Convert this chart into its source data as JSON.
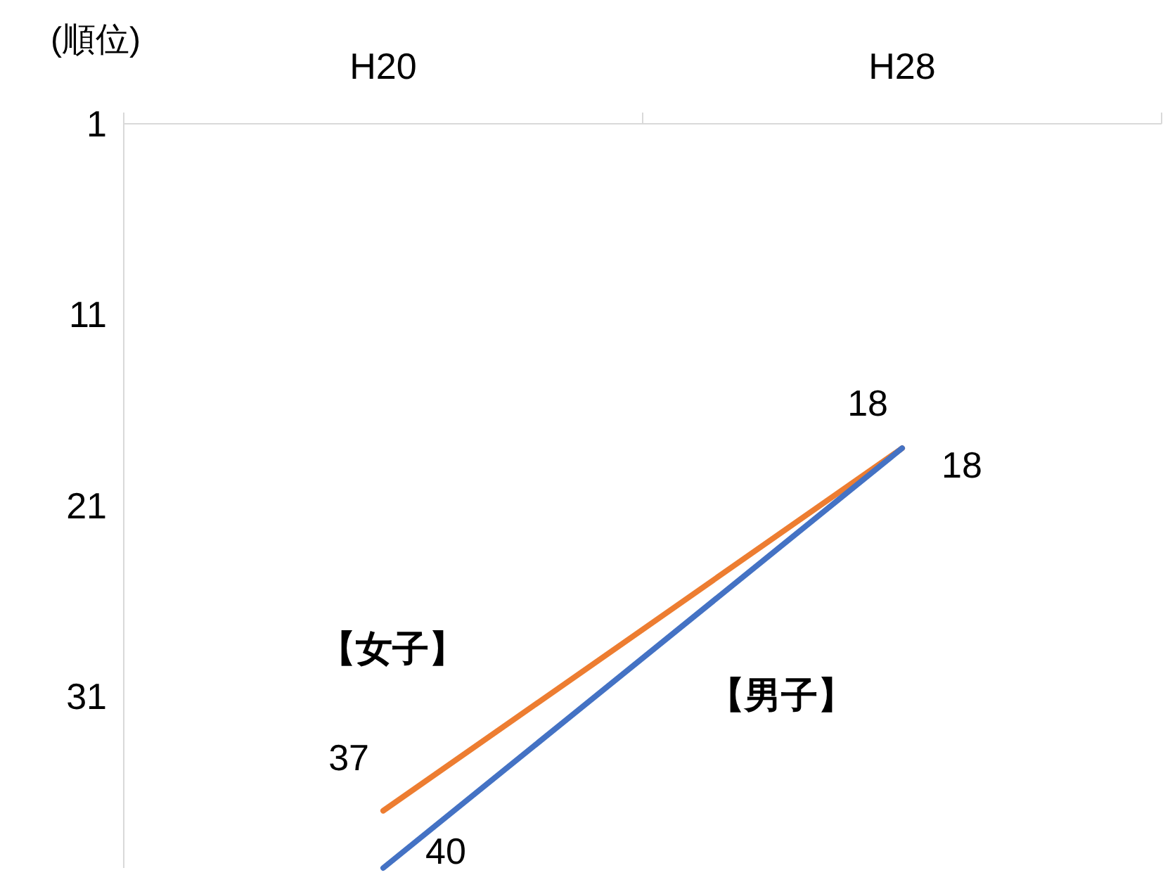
{
  "chart_data": {
    "type": "line",
    "ylabel": "(順位)",
    "categories": [
      "H20",
      "H28"
    ],
    "series": [
      {
        "name": "【女子】",
        "color": "#ed7d31",
        "values": [
          37,
          18
        ]
      },
      {
        "name": "【男子】",
        "color": "#4472c4",
        "values": [
          40,
          18
        ]
      }
    ],
    "ylim": [
      40,
      1
    ],
    "yticks": [
      1,
      11,
      21,
      31
    ],
    "data_labels": true,
    "grid": false,
    "legend": false,
    "marker": "none",
    "line_style": "solid"
  }
}
